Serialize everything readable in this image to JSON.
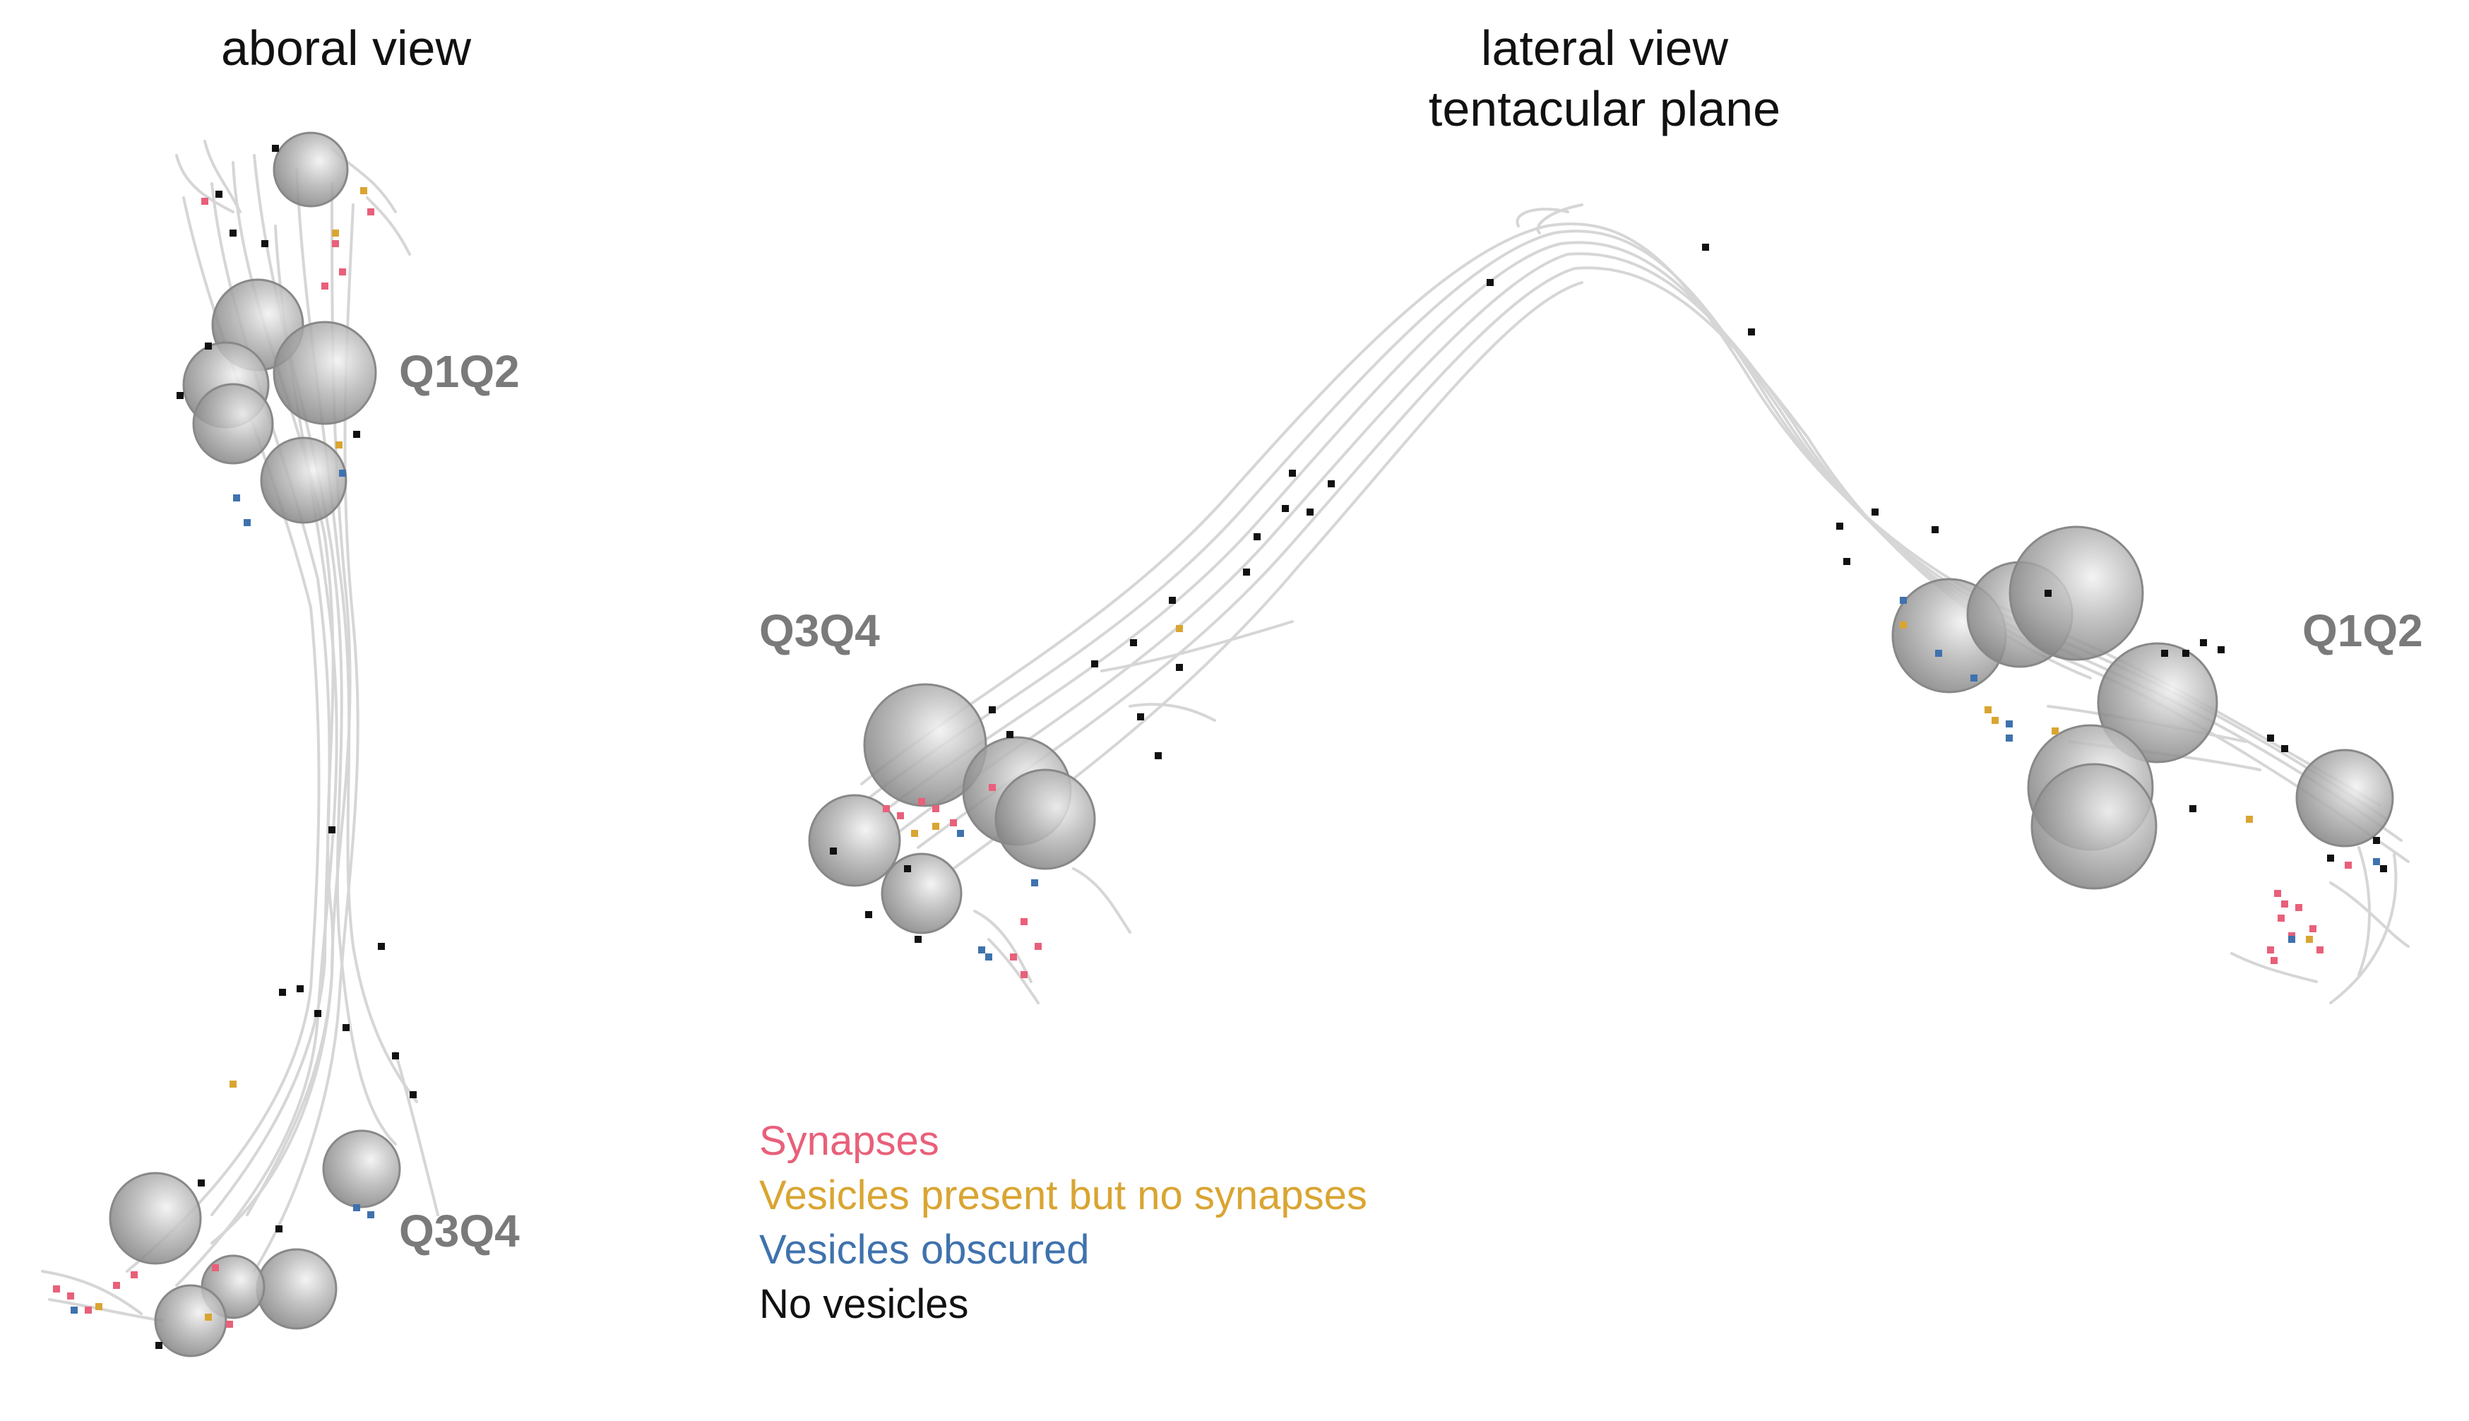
{
  "panels": {
    "aboral": {
      "title": "aboral view",
      "labels": {
        "upper": "Q1Q2",
        "lower": "Q3Q4"
      }
    },
    "lateral": {
      "title_line1": "lateral view",
      "title_line2": "tentacular plane",
      "labels": {
        "left": "Q3Q4",
        "right": "Q1Q2"
      }
    }
  },
  "legend": [
    {
      "label": "Synapses",
      "color": "#e8607a"
    },
    {
      "label": "Vesicles present but no synapses",
      "color": "#d9a532"
    },
    {
      "label": "Vesicles obscured",
      "color": "#3f72ad"
    },
    {
      "label": "No vesicles",
      "color": "#111111"
    }
  ],
  "colors": {
    "neurite": "#d6d6d6",
    "soma": "#9e9e9e",
    "region_label": "#7a7a7a"
  }
}
